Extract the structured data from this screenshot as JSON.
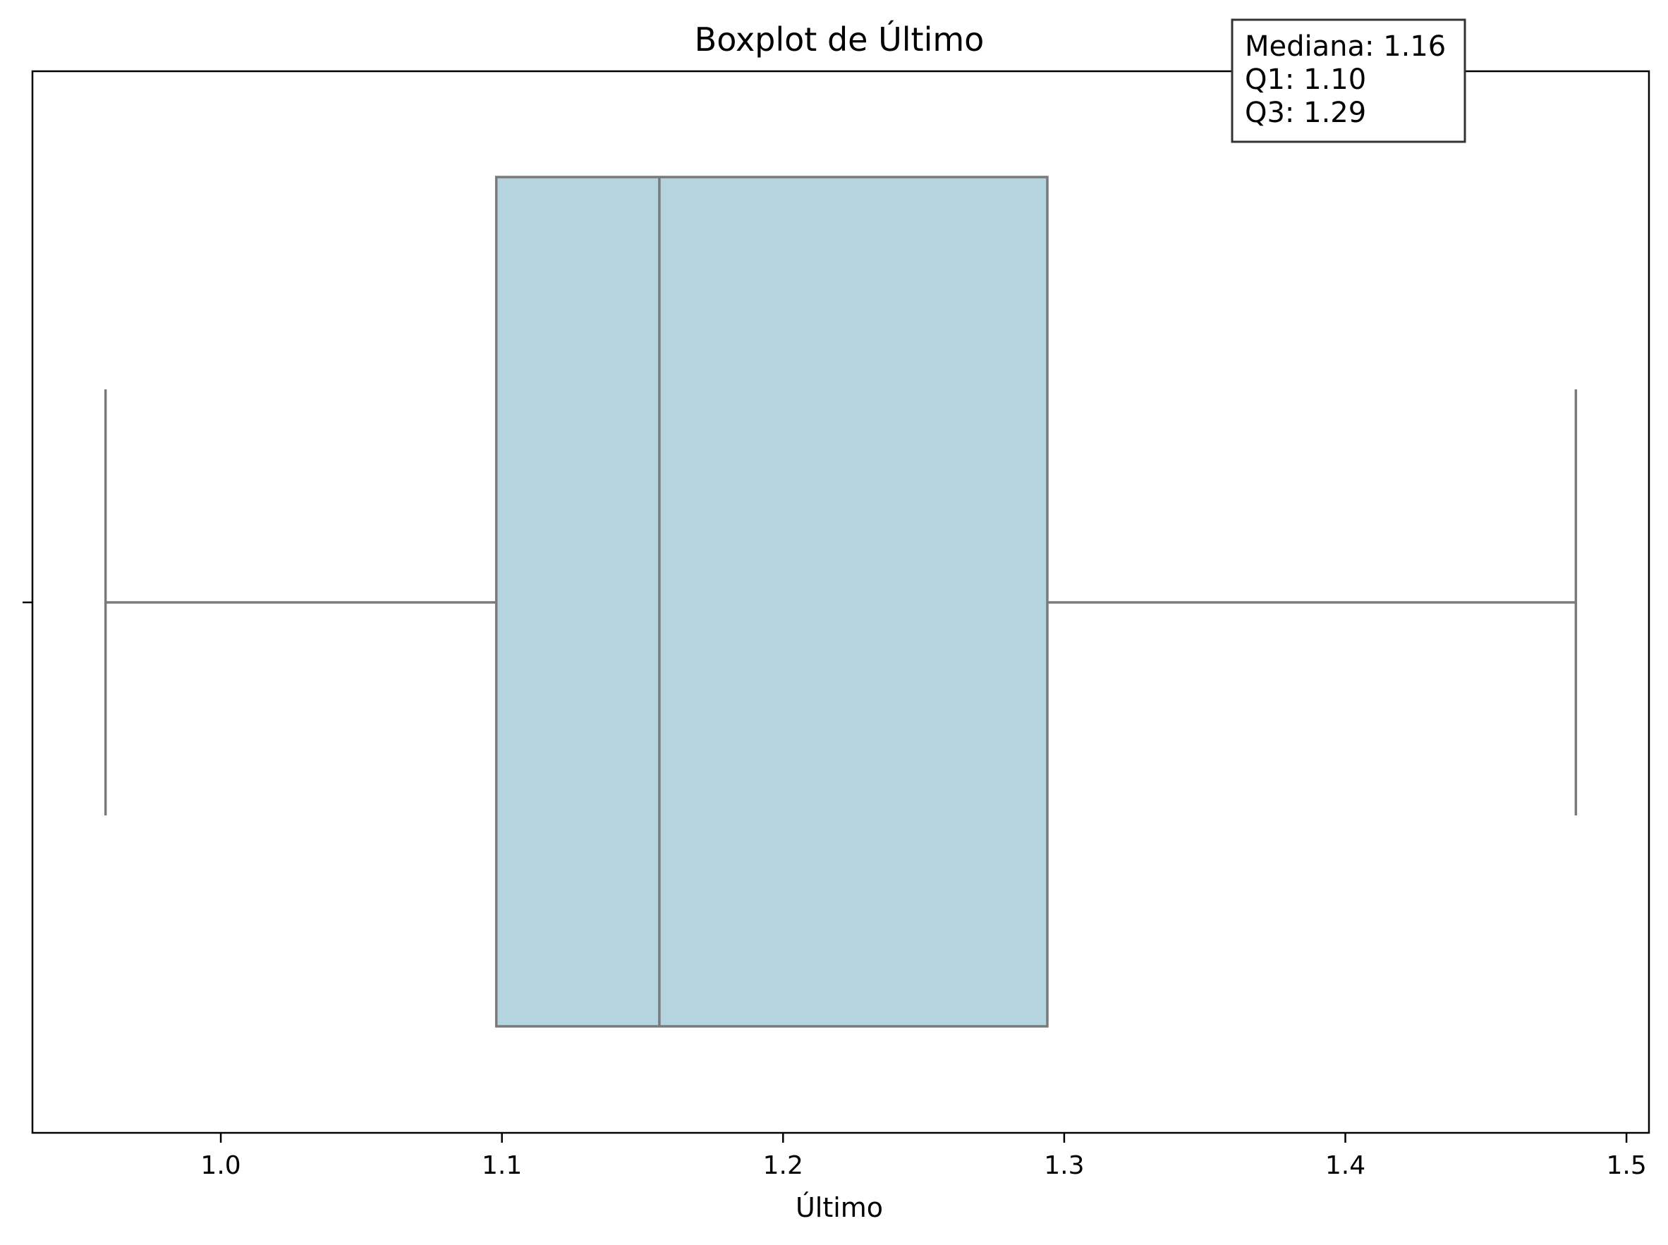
{
  "chart_data": {
    "type": "boxplot",
    "title": "Boxplot de Último",
    "xlabel": "Último",
    "ylabel": "",
    "xlim": [
      0.933,
      1.508
    ],
    "xticks": [
      1.0,
      1.1,
      1.2,
      1.3,
      1.4,
      1.5
    ],
    "tick_labels": [
      "1.0",
      "1.1",
      "1.2",
      "1.3",
      "1.4",
      "1.5"
    ],
    "grid": false,
    "box": {
      "whisker_low": 0.959,
      "q1": 1.098,
      "median": 1.156,
      "q3": 1.294,
      "whisker_high": 1.482,
      "fill_color": "#b4d5df",
      "line_color": "#7a7a7a"
    },
    "stats_box": {
      "placement": "top-right",
      "lines": [
        "Mediana: 1.16",
        "Q1: 1.10",
        "Q3: 1.29"
      ]
    }
  }
}
